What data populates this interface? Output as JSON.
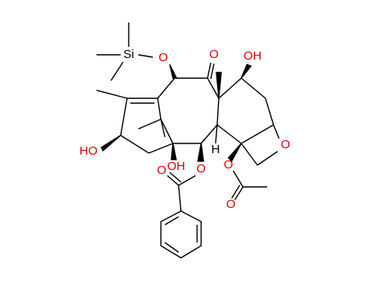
{
  "atoms": [
    {
      "label": "Si"
    },
    {
      "label": "O"
    },
    {
      "label": "O"
    },
    {
      "label": "OH"
    },
    {
      "label": "HO"
    },
    {
      "label": "OH"
    },
    {
      "label": "H"
    },
    {
      "label": "O"
    },
    {
      "label": "O"
    },
    {
      "label": "O"
    },
    {
      "label": "O"
    },
    {
      "label": "O"
    }
  ]
}
